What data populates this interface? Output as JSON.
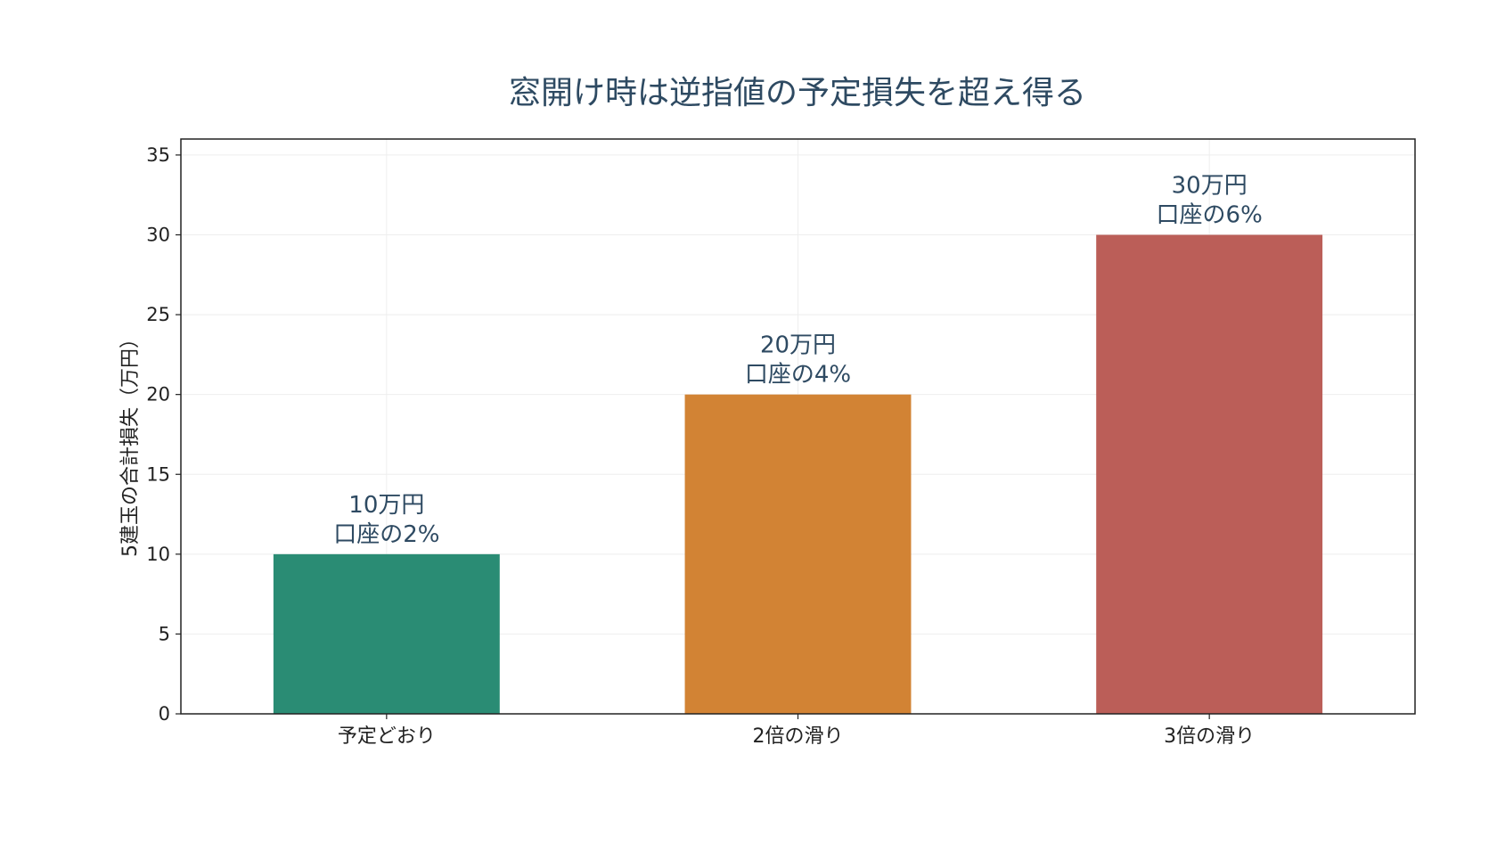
{
  "chart_data": {
    "type": "bar",
    "title": "窓開け時は逆指値の予定損失を超え得る",
    "xlabel": "",
    "ylabel": "5建玉の合計損失（万円）",
    "categories": [
      "予定どおり",
      "2倍の滑り",
      "3倍の滑り"
    ],
    "values": [
      10,
      20,
      30
    ],
    "data_labels": [
      [
        "10万円",
        "口座の2%"
      ],
      [
        "20万円",
        "口座の4%"
      ],
      [
        "30万円",
        "口座の6%"
      ]
    ],
    "colors": [
      "#2a8c74",
      "#d28334",
      "#bb5e58"
    ],
    "ylim": [
      0,
      36
    ],
    "yticks": [
      0,
      5,
      10,
      15,
      20,
      25,
      30,
      35
    ],
    "grid": true,
    "legend": "none"
  }
}
